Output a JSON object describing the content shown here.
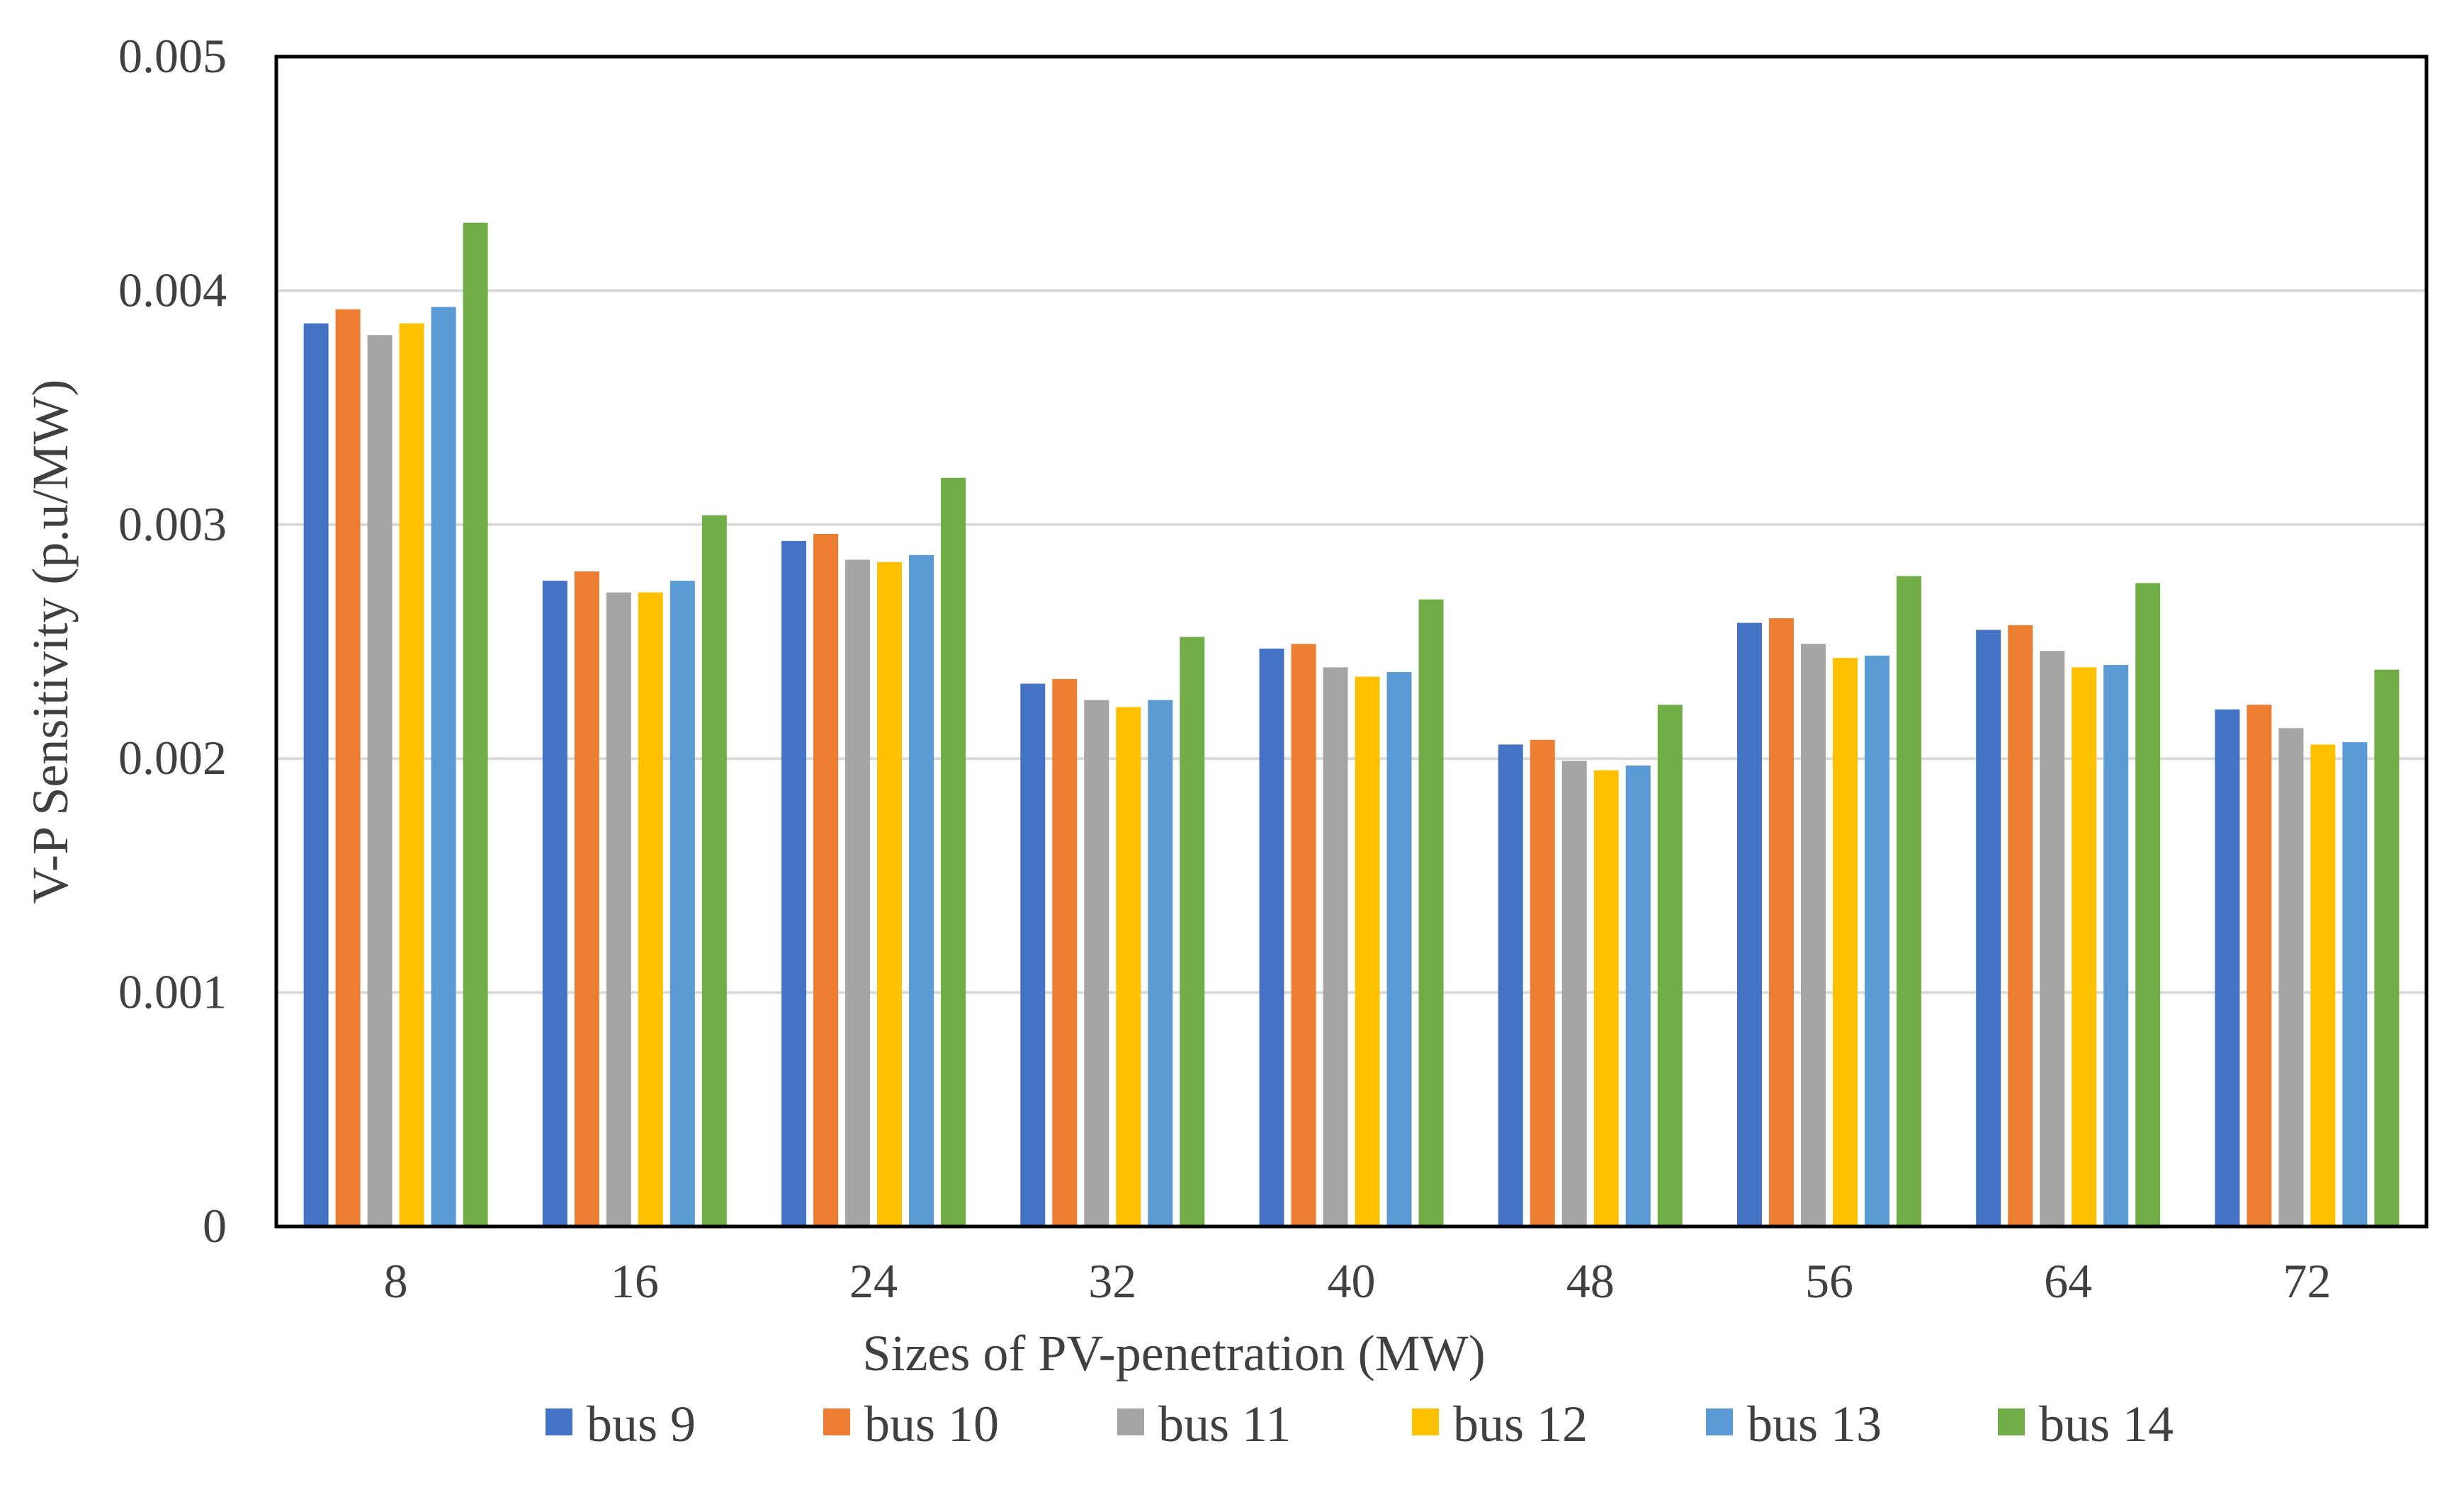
{
  "chart_data": {
    "type": "bar",
    "title": "",
    "xlabel": "Sizes of PV-penetration (MW)",
    "ylabel": "V-P Sensitivity (p.u/MW)",
    "ylim": [
      0,
      0.005
    ],
    "yticks": [
      "0",
      "0.001",
      "0.002",
      "0.003",
      "0.004",
      "0.005"
    ],
    "ytick_values": [
      0,
      0.001,
      0.002,
      0.003,
      0.004,
      0.005
    ],
    "grid": true,
    "legend_position": "bottom",
    "categories": [
      "8",
      "16",
      "24",
      "32",
      "40",
      "48",
      "56",
      "64",
      "72"
    ],
    "series": [
      {
        "name": "bus 9",
        "color": "#4472C4",
        "values": [
          0.00386,
          0.00276,
          0.00293,
          0.00232,
          0.00247,
          0.00206,
          0.00258,
          0.00255,
          0.00221
        ]
      },
      {
        "name": "bus 10",
        "color": "#ED7D31",
        "values": [
          0.00392,
          0.0028,
          0.00296,
          0.00234,
          0.00249,
          0.00208,
          0.0026,
          0.00257,
          0.00223
        ]
      },
      {
        "name": "bus 11",
        "color": "#A5A5A5",
        "values": [
          0.00381,
          0.00271,
          0.00285,
          0.00225,
          0.00239,
          0.00199,
          0.00249,
          0.00246,
          0.00213
        ]
      },
      {
        "name": "bus 12",
        "color": "#FFC000",
        "values": [
          0.00386,
          0.00271,
          0.00284,
          0.00222,
          0.00235,
          0.00195,
          0.00243,
          0.00239,
          0.00206
        ]
      },
      {
        "name": "bus 13",
        "color": "#5B9BD5",
        "values": [
          0.00393,
          0.00276,
          0.00287,
          0.00225,
          0.00237,
          0.00197,
          0.00244,
          0.0024,
          0.00207
        ]
      },
      {
        "name": "bus 14",
        "color": "#70AD47",
        "values": [
          0.00429,
          0.00304,
          0.0032,
          0.00252,
          0.00268,
          0.00223,
          0.00278,
          0.00275,
          0.00238
        ]
      }
    ]
  }
}
